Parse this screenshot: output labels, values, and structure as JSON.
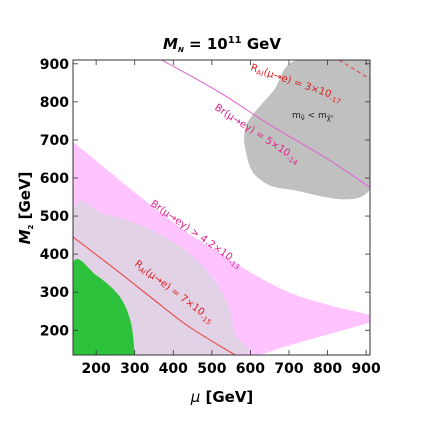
{
  "chart_data": {
    "type": "area",
    "title": {
      "main": "M",
      "main_sub": "N",
      "eq": " = 10",
      "exp": "11",
      "unit": " GeV"
    },
    "xlabel": {
      "sym": "μ",
      "unit": " [GeV]"
    },
    "ylabel": {
      "sym": "M",
      "sub": "2",
      "unit": " [GeV]"
    },
    "xlim": [
      140,
      910
    ],
    "ylim": [
      135,
      910
    ],
    "xticks": [
      200,
      300,
      400,
      500,
      600,
      700,
      800,
      900
    ],
    "yticks": [
      200,
      300,
      400,
      500,
      600,
      700,
      800,
      900
    ],
    "grid": false,
    "colors": {
      "br_mu_e_gamma_region": "#ffc4ff",
      "br_mu_3e_region": "#e2d2e6",
      "degenerate_region": "#c0c0c0",
      "allowed_region": "#2ec23c",
      "ral_curve": "#ee3a3a",
      "br_curve": "#e060d0",
      "label_ral": "#e02020",
      "label_br": "#e0208a"
    },
    "regions": [
      {
        "id": "br_mu_e_gamma",
        "lower": [
          [
            140,
            40
          ],
          [
            500,
            100
          ],
          [
            700,
            160
          ],
          [
            910,
            220
          ]
        ],
        "upper": [
          [
            140,
            695
          ],
          [
            350,
            522
          ],
          [
            500,
            415
          ],
          [
            700,
            300
          ],
          [
            910,
            240
          ]
        ]
      },
      {
        "id": "br_mu_3e",
        "boundary": [
          [
            140,
            100
          ],
          [
            140,
            510
          ],
          [
            220,
            505
          ],
          [
            330,
            470
          ],
          [
            430,
            410
          ],
          [
            500,
            340
          ],
          [
            540,
            270
          ],
          [
            560,
            190
          ],
          [
            565,
            135
          ],
          [
            140,
            135
          ]
        ]
      },
      {
        "id": "degenerate",
        "boundary": [
          [
            910,
            910
          ],
          [
            910,
            570
          ],
          [
            700,
            570
          ],
          [
            620,
            600
          ],
          [
            590,
            660
          ],
          [
            590,
            740
          ],
          [
            660,
            830
          ],
          [
            720,
            910
          ],
          [
            910,
            910
          ]
        ]
      },
      {
        "id": "allowed",
        "boundary": [
          [
            140,
            135
          ],
          [
            140,
            375
          ],
          [
            200,
            345
          ],
          [
            260,
            290
          ],
          [
            290,
            220
          ],
          [
            300,
            135
          ]
        ]
      }
    ],
    "curves": [
      {
        "id": "ral_7e-15",
        "points": [
          [
            140,
            445
          ],
          [
            250,
            360
          ],
          [
            350,
            280
          ],
          [
            440,
            210
          ],
          [
            560,
            135
          ]
        ]
      },
      {
        "id": "br_5e-14",
        "points": [
          [
            370,
            910
          ],
          [
            520,
            825
          ],
          [
            650,
            740
          ],
          [
            800,
            650
          ],
          [
            910,
            575
          ]
        ]
      },
      {
        "id": "ral_3e-17",
        "points": [
          [
            830,
            910
          ],
          [
            870,
            885
          ],
          [
            910,
            860
          ]
        ]
      }
    ],
    "annotations": {
      "ral_3e17": {
        "pre": "R",
        "pre_sub": "Al",
        "mid": "(μ→e) = 3×10",
        "exp": "-17"
      },
      "br_5e14": {
        "pre": "Br(μ→eγ) = 5×10",
        "exp": "-14"
      },
      "br_42e13": {
        "pre": "Br(μ→eγ) > 4.2×10",
        "exp": "-13"
      },
      "ral_7e15": {
        "pre": "R",
        "pre_sub": "Al",
        "mid": "(μ→e) = 7×10",
        "exp": "-15"
      },
      "degenerate": {
        "a": "m",
        "a_sub": "ν̃",
        "mid": " < m",
        "b_sub": "χ̃⁰"
      }
    }
  }
}
